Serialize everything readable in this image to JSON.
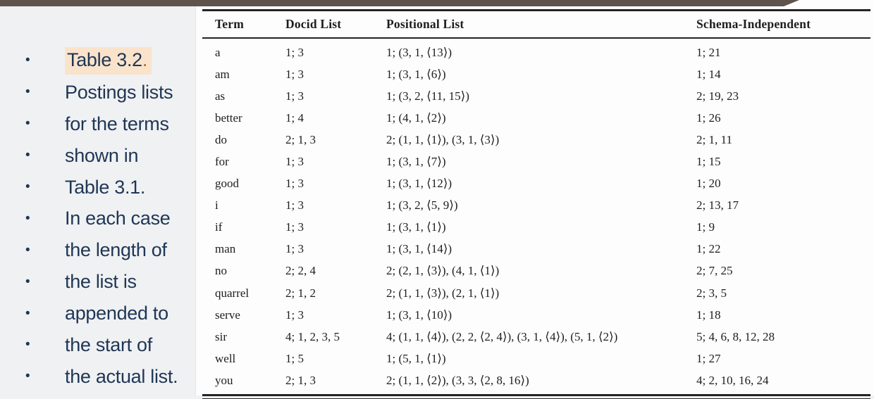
{
  "colors": {
    "background": "#f0f1f3",
    "panel": "#fdfdfd",
    "top_bar": "#5e544c",
    "rule": "#242424",
    "bullet_text": "#1f3655",
    "highlight": "#fae3cb",
    "highlight_period": "#c05f20",
    "table_text": "#1d1d1f"
  },
  "bullets": [
    {
      "label": "Table 3.2",
      "tail": ".",
      "highlight": true
    },
    {
      "label": "Postings lists",
      "tail": "",
      "highlight": false
    },
    {
      "label": "for the terms",
      "tail": "",
      "highlight": false
    },
    {
      "label": "shown in",
      "tail": "",
      "highlight": false
    },
    {
      "label": "Table 3.1.",
      "tail": "",
      "highlight": false
    },
    {
      "label": "In each case",
      "tail": "",
      "highlight": false
    },
    {
      "label": "the length of",
      "tail": "",
      "highlight": false
    },
    {
      "label": "the list is",
      "tail": "",
      "highlight": false
    },
    {
      "label": "appended to",
      "tail": "",
      "highlight": false
    },
    {
      "label": "the start of",
      "tail": "",
      "highlight": false
    },
    {
      "label": "the actual list.",
      "tail": "",
      "highlight": false
    }
  ],
  "table": {
    "headers": [
      "Term",
      "Docid List",
      "Positional List",
      "Schema-Independent"
    ],
    "rows": [
      {
        "term": "a",
        "docid": "1; 3",
        "positional": "1; (3, 1, ⟨13⟩)",
        "schema": "1; 21"
      },
      {
        "term": "am",
        "docid": "1; 3",
        "positional": "1; (3, 1, ⟨6⟩)",
        "schema": "1; 14"
      },
      {
        "term": "as",
        "docid": "1; 3",
        "positional": "1; (3, 2, ⟨11, 15⟩)",
        "schema": "2; 19, 23"
      },
      {
        "term": "better",
        "docid": "1; 4",
        "positional": "1; (4, 1, ⟨2⟩)",
        "schema": "1; 26"
      },
      {
        "term": "do",
        "docid": "2; 1, 3",
        "positional": "2; (1, 1, ⟨1⟩), (3, 1, ⟨3⟩)",
        "schema": "2; 1, 11"
      },
      {
        "term": "for",
        "docid": "1; 3",
        "positional": "1; (3, 1, ⟨7⟩)",
        "schema": "1; 15"
      },
      {
        "term": "good",
        "docid": "1; 3",
        "positional": "1; (3, 1, ⟨12⟩)",
        "schema": "1; 20"
      },
      {
        "term": "i",
        "docid": "1; 3",
        "positional": "1; (3, 2, ⟨5, 9⟩)",
        "schema": "2; 13, 17"
      },
      {
        "term": "if",
        "docid": "1; 3",
        "positional": "1; (3, 1, ⟨1⟩)",
        "schema": "1; 9"
      },
      {
        "term": "man",
        "docid": "1; 3",
        "positional": "1; (3, 1, ⟨14⟩)",
        "schema": "1; 22"
      },
      {
        "term": "no",
        "docid": "2; 2, 4",
        "positional": "2; (2, 1, ⟨3⟩), (4, 1, ⟨1⟩)",
        "schema": "2; 7, 25"
      },
      {
        "term": "quarrel",
        "docid": "2; 1, 2",
        "positional": "2; (1, 1, ⟨3⟩), (2, 1, ⟨1⟩)",
        "schema": "2; 3, 5"
      },
      {
        "term": "serve",
        "docid": "1; 3",
        "positional": "1; (3, 1, ⟨10⟩)",
        "schema": "1; 18"
      },
      {
        "term": "sir",
        "docid": "4; 1, 2, 3, 5",
        "positional": "4; (1, 1, ⟨4⟩), (2, 2, ⟨2, 4⟩), (3, 1, ⟨4⟩), (5, 1, ⟨2⟩)",
        "schema": "5; 4, 6, 8, 12, 28"
      },
      {
        "term": "well",
        "docid": "1; 5",
        "positional": "1; (5, 1, ⟨1⟩)",
        "schema": "1; 27"
      },
      {
        "term": "you",
        "docid": "2; 1, 3",
        "positional": "2; (1, 1, ⟨2⟩), (3, 3, ⟨2, 8, 16⟩)",
        "schema": "4; 2, 10, 16, 24"
      }
    ]
  }
}
